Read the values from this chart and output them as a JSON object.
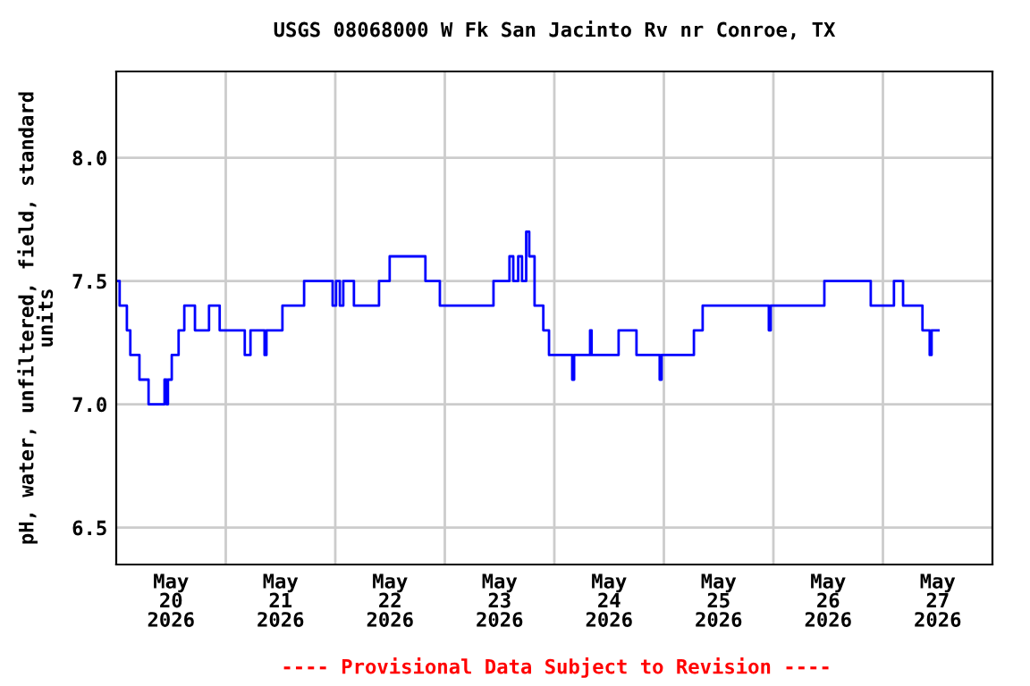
{
  "chart_data": {
    "type": "step",
    "title": "USGS 08068000 W Fk San Jacinto Rv nr Conroe, TX",
    "ylabel": "pH, water, unfiltered, field, standard\nunits",
    "annotations": [
      "---- Provisional Data Subject to Revision ----"
    ],
    "x": [
      "2026-05-20T00:00",
      "2026-05-20T00:45",
      "2026-05-20T02:20",
      "2026-05-20T03:05",
      "2026-05-20T05:05",
      "2026-05-20T07:05",
      "2026-05-20T10:35",
      "2026-05-20T11:00",
      "2026-05-20T11:20",
      "2026-05-20T12:10",
      "2026-05-20T13:40",
      "2026-05-20T14:55",
      "2026-05-20T17:15",
      "2026-05-20T20:20",
      "2026-05-20T22:40",
      "2026-05-21T04:10",
      "2026-05-21T05:25",
      "2026-05-21T08:30",
      "2026-05-21T08:55",
      "2026-05-21T12:25",
      "2026-05-21T17:10",
      "2026-05-21T23:25",
      "2026-05-22T00:10",
      "2026-05-22T01:00",
      "2026-05-22T01:45",
      "2026-05-22T04:05",
      "2026-05-22T09:35",
      "2026-05-22T11:55",
      "2026-05-22T19:45",
      "2026-05-22T22:55",
      "2026-05-23T10:40",
      "2026-05-23T14:10",
      "2026-05-23T15:00",
      "2026-05-23T16:05",
      "2026-05-23T16:55",
      "2026-05-23T17:50",
      "2026-05-23T18:30",
      "2026-05-23T19:40",
      "2026-05-23T21:35",
      "2026-05-23T22:50",
      "2026-05-24T03:55",
      "2026-05-24T04:20",
      "2026-05-24T07:50",
      "2026-05-24T08:10",
      "2026-05-24T14:05",
      "2026-05-24T18:00",
      "2026-05-24T23:05",
      "2026-05-24T23:30",
      "2026-05-25T06:35",
      "2026-05-25T08:30",
      "2026-05-25T23:00",
      "2026-05-25T23:25",
      "2026-05-26T11:10",
      "2026-05-26T21:20",
      "2026-05-27T02:25",
      "2026-05-27T04:25",
      "2026-05-27T08:40",
      "2026-05-27T10:15",
      "2026-05-27T10:40",
      "2026-05-27T12:10"
    ],
    "series": [
      {
        "color": "#0000ff",
        "values": [
          7.5,
          7.4,
          7.3,
          7.2,
          7.1,
          7.0,
          7.1,
          7.0,
          7.1,
          7.2,
          7.3,
          7.4,
          7.3,
          7.4,
          7.3,
          7.2,
          7.3,
          7.2,
          7.3,
          7.4,
          7.5,
          7.4,
          7.5,
          7.4,
          7.5,
          7.4,
          7.5,
          7.6,
          7.5,
          7.4,
          7.5,
          7.6,
          7.5,
          7.6,
          7.5,
          7.7,
          7.6,
          7.4,
          7.3,
          7.2,
          7.1,
          7.2,
          7.3,
          7.2,
          7.3,
          7.2,
          7.1,
          7.2,
          7.3,
          7.4,
          7.3,
          7.4,
          7.5,
          7.4,
          7.5,
          7.4,
          7.3,
          7.2,
          7.3,
          7.3
        ]
      }
    ],
    "xlim": [
      "2026-05-20T00:00",
      "2026-05-28T00:00"
    ],
    "xticks": [
      {
        "value": "2026-05-20T12:00",
        "label": "May\n20\n2026"
      },
      {
        "value": "2026-05-21T12:00",
        "label": "May\n21\n2026"
      },
      {
        "value": "2026-05-22T12:00",
        "label": "May\n22\n2026"
      },
      {
        "value": "2026-05-23T12:00",
        "label": "May\n23\n2026"
      },
      {
        "value": "2026-05-24T12:00",
        "label": "May\n24\n2026"
      },
      {
        "value": "2026-05-25T12:00",
        "label": "May\n25\n2026"
      },
      {
        "value": "2026-05-26T12:00",
        "label": "May\n26\n2026"
      },
      {
        "value": "2026-05-27T12:00",
        "label": "May\n27\n2026"
      },
      {
        "value": "2026-05-21T00:00",
        "label": null
      },
      {
        "value": "2026-05-22T00:00",
        "label": null
      },
      {
        "value": "2026-05-23T00:00",
        "label": null
      },
      {
        "value": "2026-05-24T00:00",
        "label": null
      },
      {
        "value": "2026-05-25T00:00",
        "label": null
      },
      {
        "value": "2026-05-26T00:00",
        "label": null
      },
      {
        "value": "2026-05-27T00:00",
        "label": null
      }
    ],
    "ylim": [
      6.35,
      8.35
    ],
    "yticks": [
      {
        "value": 6.5,
        "label": "6.5"
      },
      {
        "value": 7.0,
        "label": "7.0"
      },
      {
        "value": 7.5,
        "label": "7.5"
      },
      {
        "value": 8.0,
        "label": "8.0"
      }
    ],
    "grid": true,
    "marker": "none",
    "line_style": "solid"
  }
}
